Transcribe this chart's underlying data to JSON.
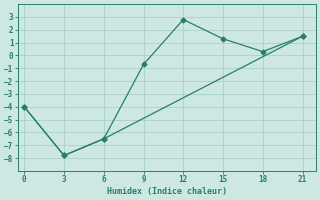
{
  "line1_x": [
    0,
    3,
    6,
    9,
    12,
    15,
    18,
    21
  ],
  "line1_y": [
    -4,
    -7.8,
    -6.5,
    -0.7,
    2.8,
    1.3,
    0.3,
    1.5
  ],
  "line2_x": [
    0,
    3,
    6,
    21
  ],
  "line2_y": [
    -4,
    -7.8,
    -6.5,
    1.5
  ],
  "color": "#2a7d6e",
  "bg_color": "#cde8e3",
  "grid_color": "#aacfc9",
  "xlabel": "Humidex (Indice chaleur)",
  "xlim": [
    -0.5,
    22
  ],
  "ylim": [
    -9,
    4
  ],
  "xticks": [
    0,
    3,
    6,
    9,
    12,
    15,
    18,
    21
  ],
  "yticks": [
    -8,
    -7,
    -6,
    -5,
    -4,
    -3,
    -2,
    -1,
    0,
    1,
    2,
    3
  ],
  "markersize": 2.5,
  "linewidth": 0.9
}
